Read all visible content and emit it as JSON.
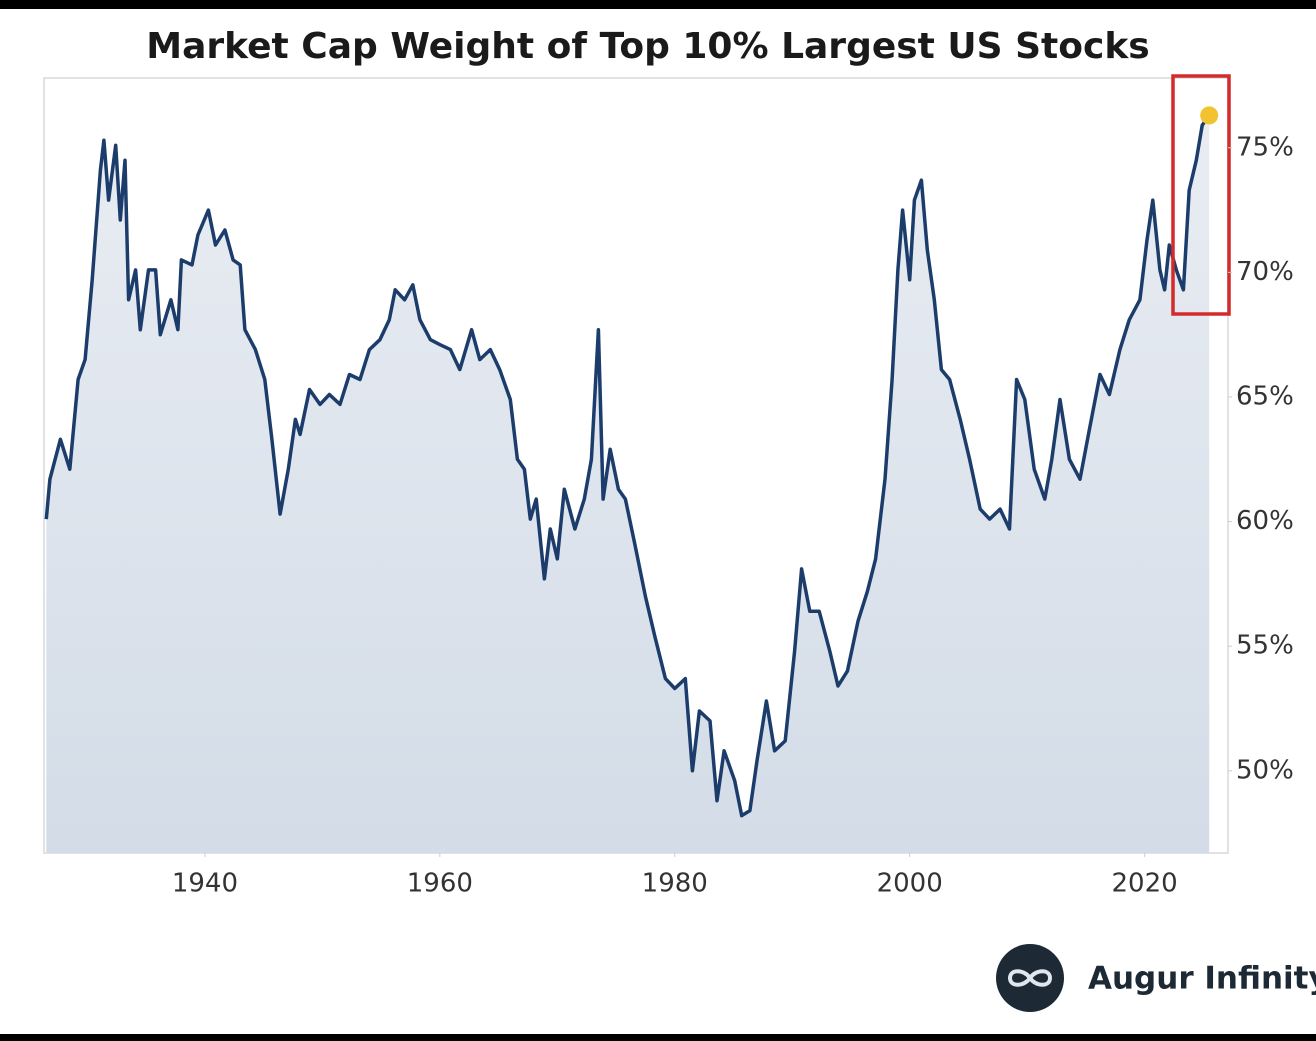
{
  "chart_data": {
    "type": "line",
    "title": "Market Cap Weight of Top 10% Largest US Stocks",
    "brand": "Augur Infinity",
    "color": "#1c3d6b",
    "highlight_color": "#f2c230",
    "x": [
      1926.5,
      1926.8,
      1927.7,
      1928.5,
      1929.2,
      1929.8,
      1930.4,
      1931.1,
      1931.4,
      1931.8,
      1932.4,
      1932.8,
      1933.2,
      1933.5,
      1934.1,
      1934.5,
      1935.2,
      1935.8,
      1936.2,
      1937.1,
      1937.7,
      1938.0,
      1938.9,
      1939.4,
      1940.3,
      1940.9,
      1941.7,
      1942.4,
      1943.0,
      1943.4,
      1944.3,
      1945.1,
      1945.7,
      1946.4,
      1947.1,
      1947.7,
      1948.1,
      1948.9,
      1949.8,
      1950.6,
      1951.5,
      1952.3,
      1953.2,
      1954.0,
      1954.9,
      1955.7,
      1956.2,
      1957.0,
      1957.7,
      1958.3,
      1959.2,
      1960.0,
      1960.9,
      1961.7,
      1962.7,
      1963.4,
      1964.3,
      1965.1,
      1966.0,
      1966.6,
      1967.2,
      1967.7,
      1968.2,
      1968.9,
      1969.4,
      1970.0,
      1970.6,
      1971.5,
      1972.3,
      1972.9,
      1973.5,
      1973.9,
      1974.5,
      1975.2,
      1975.8,
      1976.6,
      1977.5,
      1978.3,
      1979.2,
      1980.0,
      1980.9,
      1981.5,
      1982.1,
      1983.0,
      1983.6,
      1984.2,
      1985.1,
      1985.7,
      1986.4,
      1987.0,
      1987.8,
      1988.5,
      1989.4,
      1990.2,
      1990.8,
      1991.5,
      1992.3,
      1993.2,
      1993.9,
      1994.7,
      1995.6,
      1996.4,
      1997.1,
      1997.9,
      1998.5,
      1999.0,
      1999.4,
      2000.0,
      2000.4,
      2001.0,
      2001.5,
      2002.1,
      2002.7,
      2003.4,
      2004.3,
      2005.1,
      2006.0,
      2006.8,
      2007.7,
      2008.5,
      2009.1,
      2009.8,
      2010.6,
      2011.5,
      2012.1,
      2012.8,
      2013.6,
      2014.5,
      2015.3,
      2016.2,
      2017.0,
      2017.9,
      2018.7,
      2019.6,
      2020.2,
      2020.7,
      2021.3,
      2021.7,
      2022.1,
      2022.7,
      2023.3,
      2023.8,
      2024.4,
      2024.9,
      2025.5
    ],
    "series": [
      {
        "values": [
          60.1,
          61.7,
          63.3,
          62.1,
          65.7,
          66.5,
          69.7,
          74.1,
          75.3,
          72.9,
          75.1,
          72.1,
          74.5,
          68.9,
          70.1,
          67.7,
          70.1,
          70.1,
          67.5,
          68.9,
          67.7,
          70.5,
          70.3,
          71.5,
          72.5,
          71.1,
          71.7,
          70.5,
          70.3,
          67.7,
          66.9,
          65.7,
          63.3,
          60.3,
          62.1,
          64.1,
          63.5,
          65.3,
          64.7,
          65.1,
          64.7,
          65.9,
          65.7,
          66.9,
          67.3,
          68.1,
          69.3,
          68.9,
          69.5,
          68.1,
          67.3,
          67.1,
          66.9,
          66.1,
          67.7,
          66.5,
          66.9,
          66.1,
          64.9,
          62.5,
          62.1,
          60.1,
          60.9,
          57.7,
          59.7,
          58.5,
          61.3,
          59.7,
          60.9,
          62.5,
          67.7,
          60.9,
          62.9,
          61.3,
          60.9,
          59.1,
          57.0,
          55.4,
          53.7,
          53.3,
          53.7,
          50.0,
          52.4,
          52.0,
          48.8,
          50.8,
          49.6,
          48.2,
          48.4,
          50.4,
          52.8,
          50.8,
          51.2,
          54.8,
          58.1,
          56.4,
          56.4,
          54.8,
          53.4,
          54.0,
          56.0,
          57.2,
          58.5,
          61.7,
          65.7,
          70.1,
          72.5,
          69.7,
          72.9,
          73.7,
          70.9,
          68.9,
          66.1,
          65.7,
          64.1,
          62.5,
          60.5,
          60.1,
          60.5,
          59.7,
          65.7,
          64.9,
          62.1,
          60.9,
          62.5,
          64.9,
          62.5,
          61.7,
          63.7,
          65.9,
          65.1,
          66.9,
          68.1,
          68.9,
          71.3,
          72.9,
          70.1,
          69.3,
          71.1,
          70.1,
          69.3,
          73.3,
          74.5,
          75.9,
          76.3
        ]
      }
    ],
    "xlim": [
      1926.3,
      2027.1
    ],
    "ylim": [
      46.7,
      77.8
    ],
    "xticks": [
      1940,
      1960,
      1980,
      2000,
      2020
    ],
    "yticks": [
      {
        "value": 50,
        "label": "50%"
      },
      {
        "value": 55,
        "label": "55%"
      },
      {
        "value": 60,
        "label": "60%"
      },
      {
        "value": 65,
        "label": "65%"
      },
      {
        "value": 70,
        "label": "70%"
      },
      {
        "value": 75,
        "label": "75%"
      }
    ]
  }
}
